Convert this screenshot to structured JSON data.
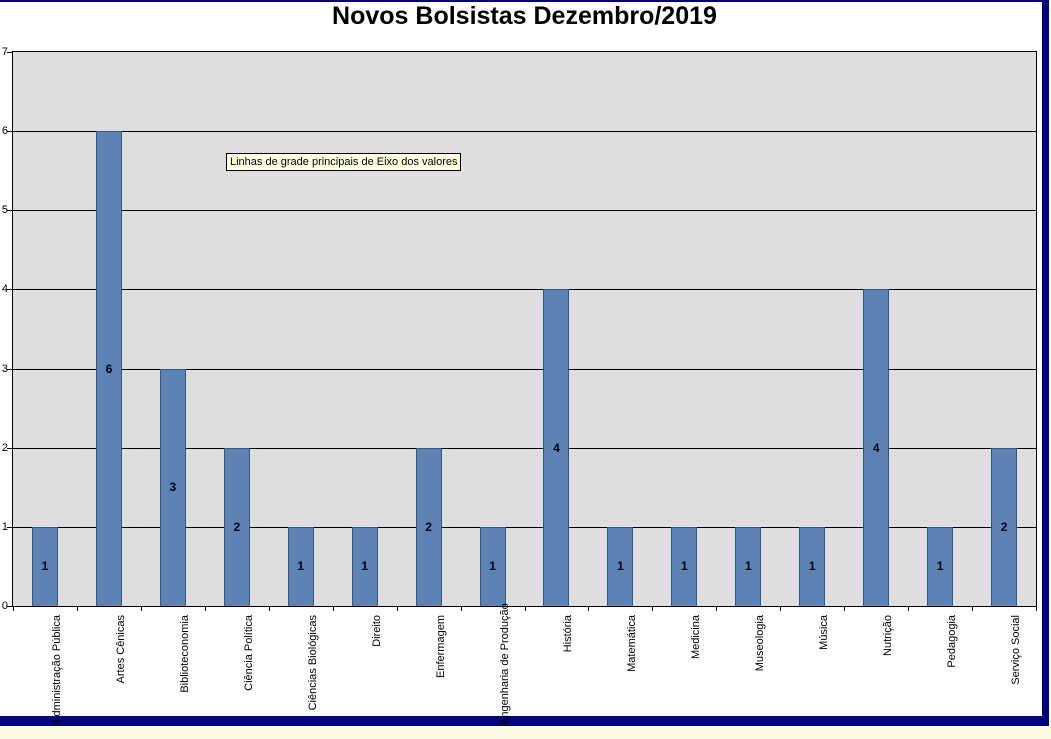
{
  "chart": {
    "tooltip": "Linhas de grade principais de Eixo dos valores"
  },
  "chart_data": {
    "type": "bar",
    "title": "Novos Bolsistas Dezembro/2019",
    "categories": [
      "Administração Pública",
      "Artes Cênicas",
      "Biblioteconomia",
      "Ciência Política",
      "Ciências Biológicas",
      "Direito",
      "Enfermagem",
      "Engenharia de Produção",
      "História",
      "Matemática",
      "Medicina",
      "Museologia",
      "Música",
      "Nutrição",
      "Pedagogia",
      "Serviço Social"
    ],
    "values": [
      1,
      6,
      3,
      2,
      1,
      1,
      2,
      1,
      4,
      1,
      1,
      1,
      1,
      4,
      1,
      2
    ],
    "xlabel": "",
    "ylabel": "",
    "ylim": [
      0,
      7
    ],
    "yticks": [
      0,
      1,
      2,
      3,
      4,
      5,
      6,
      7
    ],
    "grid": true,
    "data_labels_position": "center",
    "legend": "none",
    "colors": {
      "bar_fill": "#5B83B6",
      "bar_border": "#35567E",
      "plot_bg": "#DEDEDF",
      "gridline": "#000000",
      "chart_border": "#000080",
      "tooltip_bg": "#FFFFE1",
      "outside_bg": "#FBFBE2"
    }
  }
}
